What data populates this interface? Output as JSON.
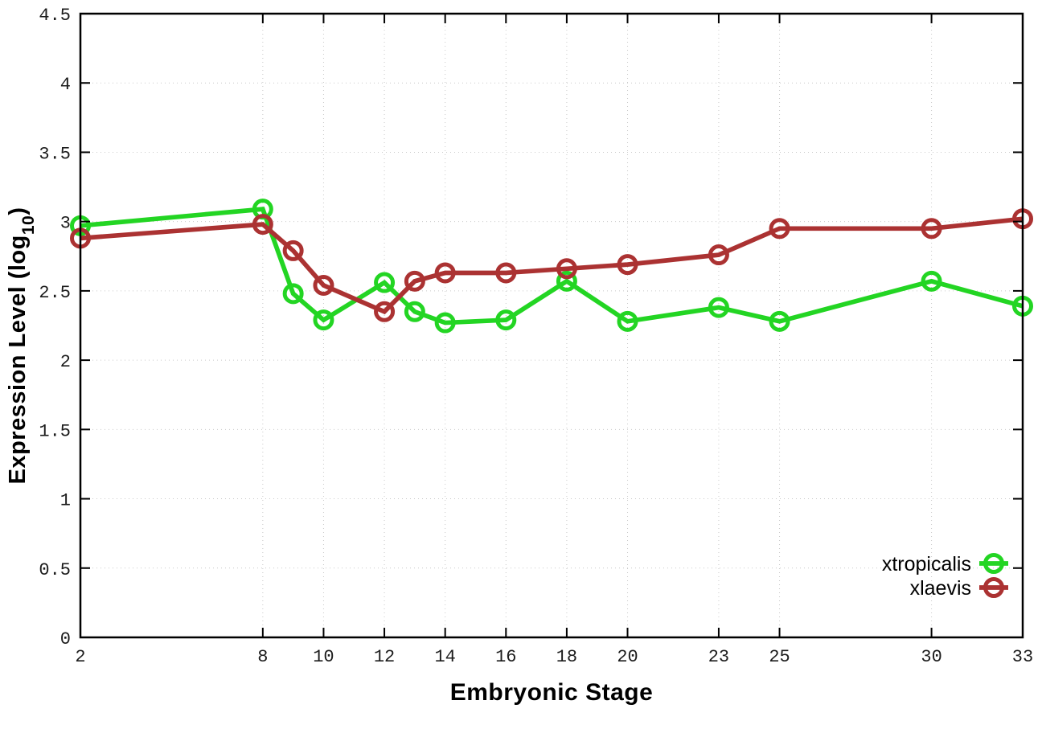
{
  "chart_data": {
    "type": "line",
    "xlabel": "Embryonic Stage",
    "ylabel": {
      "main": "Expression Level (log",
      "sub": "10",
      "close": ")"
    },
    "xlim": [
      2,
      33
    ],
    "ylim": [
      0,
      4.5
    ],
    "grid": true,
    "legend_position": "inside-bottom-right",
    "marker": "open-circle",
    "x": [
      2,
      8,
      9,
      10,
      12,
      13,
      14,
      16,
      18,
      20,
      23,
      25,
      30,
      33
    ],
    "xtick_values": [
      2,
      8,
      10,
      12,
      14,
      16,
      18,
      20,
      23,
      25,
      30,
      33
    ],
    "xtick_labels": [
      "2",
      "8",
      "10",
      "12",
      "14",
      "16",
      "18",
      "20",
      "23",
      "25",
      "30",
      "33"
    ],
    "ytick_values": [
      0,
      0.5,
      1,
      1.5,
      2,
      2.5,
      3,
      3.5,
      4,
      4.5
    ],
    "ytick_labels": [
      "0",
      "0.5",
      "1",
      "1.5",
      "2",
      "2.5",
      "3",
      "3.5",
      "4",
      "4.5"
    ],
    "series": [
      {
        "name": "xtropicalis",
        "color": "#23d523",
        "values": [
          2.97,
          3.09,
          2.48,
          2.29,
          2.56,
          2.35,
          2.27,
          2.29,
          2.57,
          2.28,
          2.38,
          2.28,
          2.57,
          2.39
        ]
      },
      {
        "name": "xlaevis",
        "color": "#ab3232",
        "values": [
          2.88,
          2.98,
          2.79,
          2.54,
          2.35,
          2.57,
          2.63,
          2.63,
          2.66,
          2.69,
          2.76,
          2.95,
          2.95,
          3.02
        ]
      }
    ],
    "colors": {
      "grid": "#c9c9c9",
      "axis": "#000000",
      "background": "#ffffff"
    }
  }
}
